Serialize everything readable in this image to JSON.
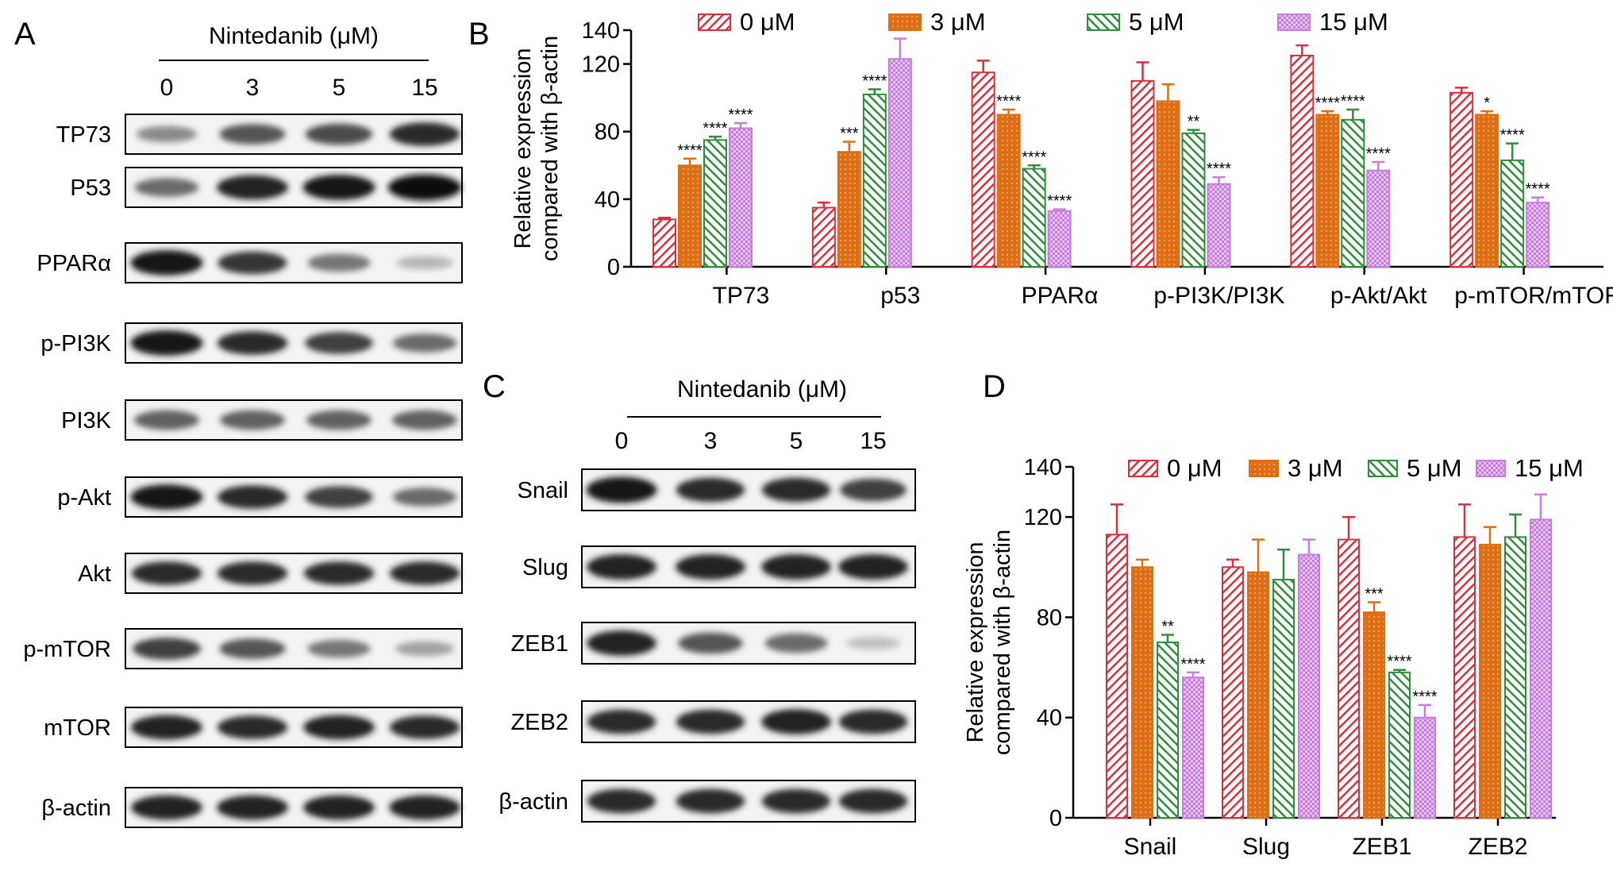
{
  "panels": {
    "A": {
      "letter": "A",
      "treatment_label": "Nintedanib (μM)",
      "doses": [
        "0",
        "3",
        "5",
        "15"
      ],
      "rows": [
        {
          "label": "TP73",
          "intensity": [
            0.4,
            0.65,
            0.7,
            0.85
          ]
        },
        {
          "label": "P53",
          "intensity": [
            0.55,
            0.9,
            0.95,
            1.0
          ]
        },
        {
          "label": "PPARα",
          "intensity": [
            0.95,
            0.8,
            0.5,
            0.2
          ]
        },
        {
          "label": "p-PI3K",
          "intensity": [
            0.95,
            0.85,
            0.75,
            0.55
          ]
        },
        {
          "label": "PI3K",
          "intensity": [
            0.6,
            0.6,
            0.6,
            0.6
          ]
        },
        {
          "label": "p-Akt",
          "intensity": [
            0.95,
            0.85,
            0.75,
            0.55
          ]
        },
        {
          "label": "Akt",
          "intensity": [
            0.85,
            0.85,
            0.85,
            0.85
          ]
        },
        {
          "label": "p-mTOR",
          "intensity": [
            0.75,
            0.65,
            0.5,
            0.3
          ]
        },
        {
          "label": "mTOR",
          "intensity": [
            0.9,
            0.85,
            0.9,
            0.85
          ]
        },
        {
          "label": "β-actin",
          "intensity": [
            0.9,
            0.9,
            0.9,
            0.9
          ]
        }
      ]
    },
    "C": {
      "letter": "C",
      "treatment_label": "Nintedanib (μM)",
      "doses": [
        "0",
        "3",
        "5",
        "15"
      ],
      "rows": [
        {
          "label": "Snail",
          "intensity": [
            0.95,
            0.85,
            0.85,
            0.75
          ]
        },
        {
          "label": "Slug",
          "intensity": [
            0.9,
            0.9,
            0.9,
            0.9
          ]
        },
        {
          "label": "ZEB1",
          "intensity": [
            0.9,
            0.65,
            0.55,
            0.15
          ]
        },
        {
          "label": "ZEB2",
          "intensity": [
            0.85,
            0.85,
            0.9,
            0.85
          ]
        },
        {
          "label": "β-actin",
          "intensity": [
            0.85,
            0.85,
            0.85,
            0.85
          ]
        }
      ]
    }
  },
  "colors": {
    "0": "#d9303c",
    "3": "#de6e14",
    "5": "#2f8d3c",
    "15": "#c77ddb"
  },
  "chart_data": [
    {
      "panel": "B",
      "type": "bar",
      "ylabel": [
        "Relative expression",
        "compared with β-actin"
      ],
      "ylim": [
        0,
        140
      ],
      "yticks": [
        0,
        40,
        80,
        120,
        140
      ],
      "legend_position": "top",
      "categories": [
        "TP73",
        "p53",
        "PPARα",
        "p-PI3K/PI3K",
        "p-Akt/Akt",
        "p-mTOR/mTOR"
      ],
      "series": [
        {
          "name": "0 μM",
          "values": [
            28,
            35,
            115,
            110,
            125,
            103
          ],
          "errors": [
            1,
            3,
            7,
            11,
            6,
            3
          ],
          "sig": [
            "",
            "",
            "",
            "",
            "",
            ""
          ]
        },
        {
          "name": "3 μM",
          "values": [
            60,
            68,
            90,
            98,
            90,
            90
          ],
          "errors": [
            4,
            6,
            3,
            10,
            2,
            2
          ],
          "sig": [
            "****",
            "***",
            "****",
            "",
            "****",
            "*"
          ]
        },
        {
          "name": "5 μM",
          "values": [
            75,
            102,
            58,
            79,
            87,
            63
          ],
          "errors": [
            2,
            3,
            2,
            2,
            6,
            10
          ],
          "sig": [
            "****",
            "****",
            "****",
            "**",
            "****",
            "****"
          ]
        },
        {
          "name": "15 μM",
          "values": [
            82,
            123,
            33,
            49,
            57,
            38
          ],
          "errors": [
            3,
            12,
            1,
            4,
            5,
            3
          ],
          "sig": [
            "****",
            "****",
            "****",
            "****",
            "****",
            "****"
          ]
        }
      ]
    },
    {
      "panel": "D",
      "type": "bar",
      "ylabel": [
        "Relative expression",
        "compared with β-actin"
      ],
      "ylim": [
        0,
        140
      ],
      "yticks": [
        0,
        40,
        80,
        120,
        140
      ],
      "legend_position": "top",
      "categories": [
        "Snail",
        "Slug",
        "ZEB1",
        "ZEB2"
      ],
      "series": [
        {
          "name": "0 μM",
          "values": [
            113,
            100,
            111,
            112
          ],
          "errors": [
            12,
            3,
            9,
            13
          ],
          "sig": [
            "",
            "",
            "",
            ""
          ]
        },
        {
          "name": "3 μM",
          "values": [
            100,
            98,
            82,
            109
          ],
          "errors": [
            3,
            13,
            4,
            7
          ],
          "sig": [
            "",
            "",
            "***",
            ""
          ]
        },
        {
          "name": "5 μM",
          "values": [
            70,
            95,
            58,
            112
          ],
          "errors": [
            3,
            12,
            1,
            9
          ],
          "sig": [
            "**",
            "",
            "****",
            ""
          ]
        },
        {
          "name": "15 μM",
          "values": [
            56,
            105,
            40,
            119
          ],
          "errors": [
            2,
            6,
            5,
            10
          ],
          "sig": [
            "****",
            "",
            "****",
            ""
          ]
        }
      ]
    }
  ],
  "panel_letters": {
    "B": "B",
    "D": "D"
  }
}
